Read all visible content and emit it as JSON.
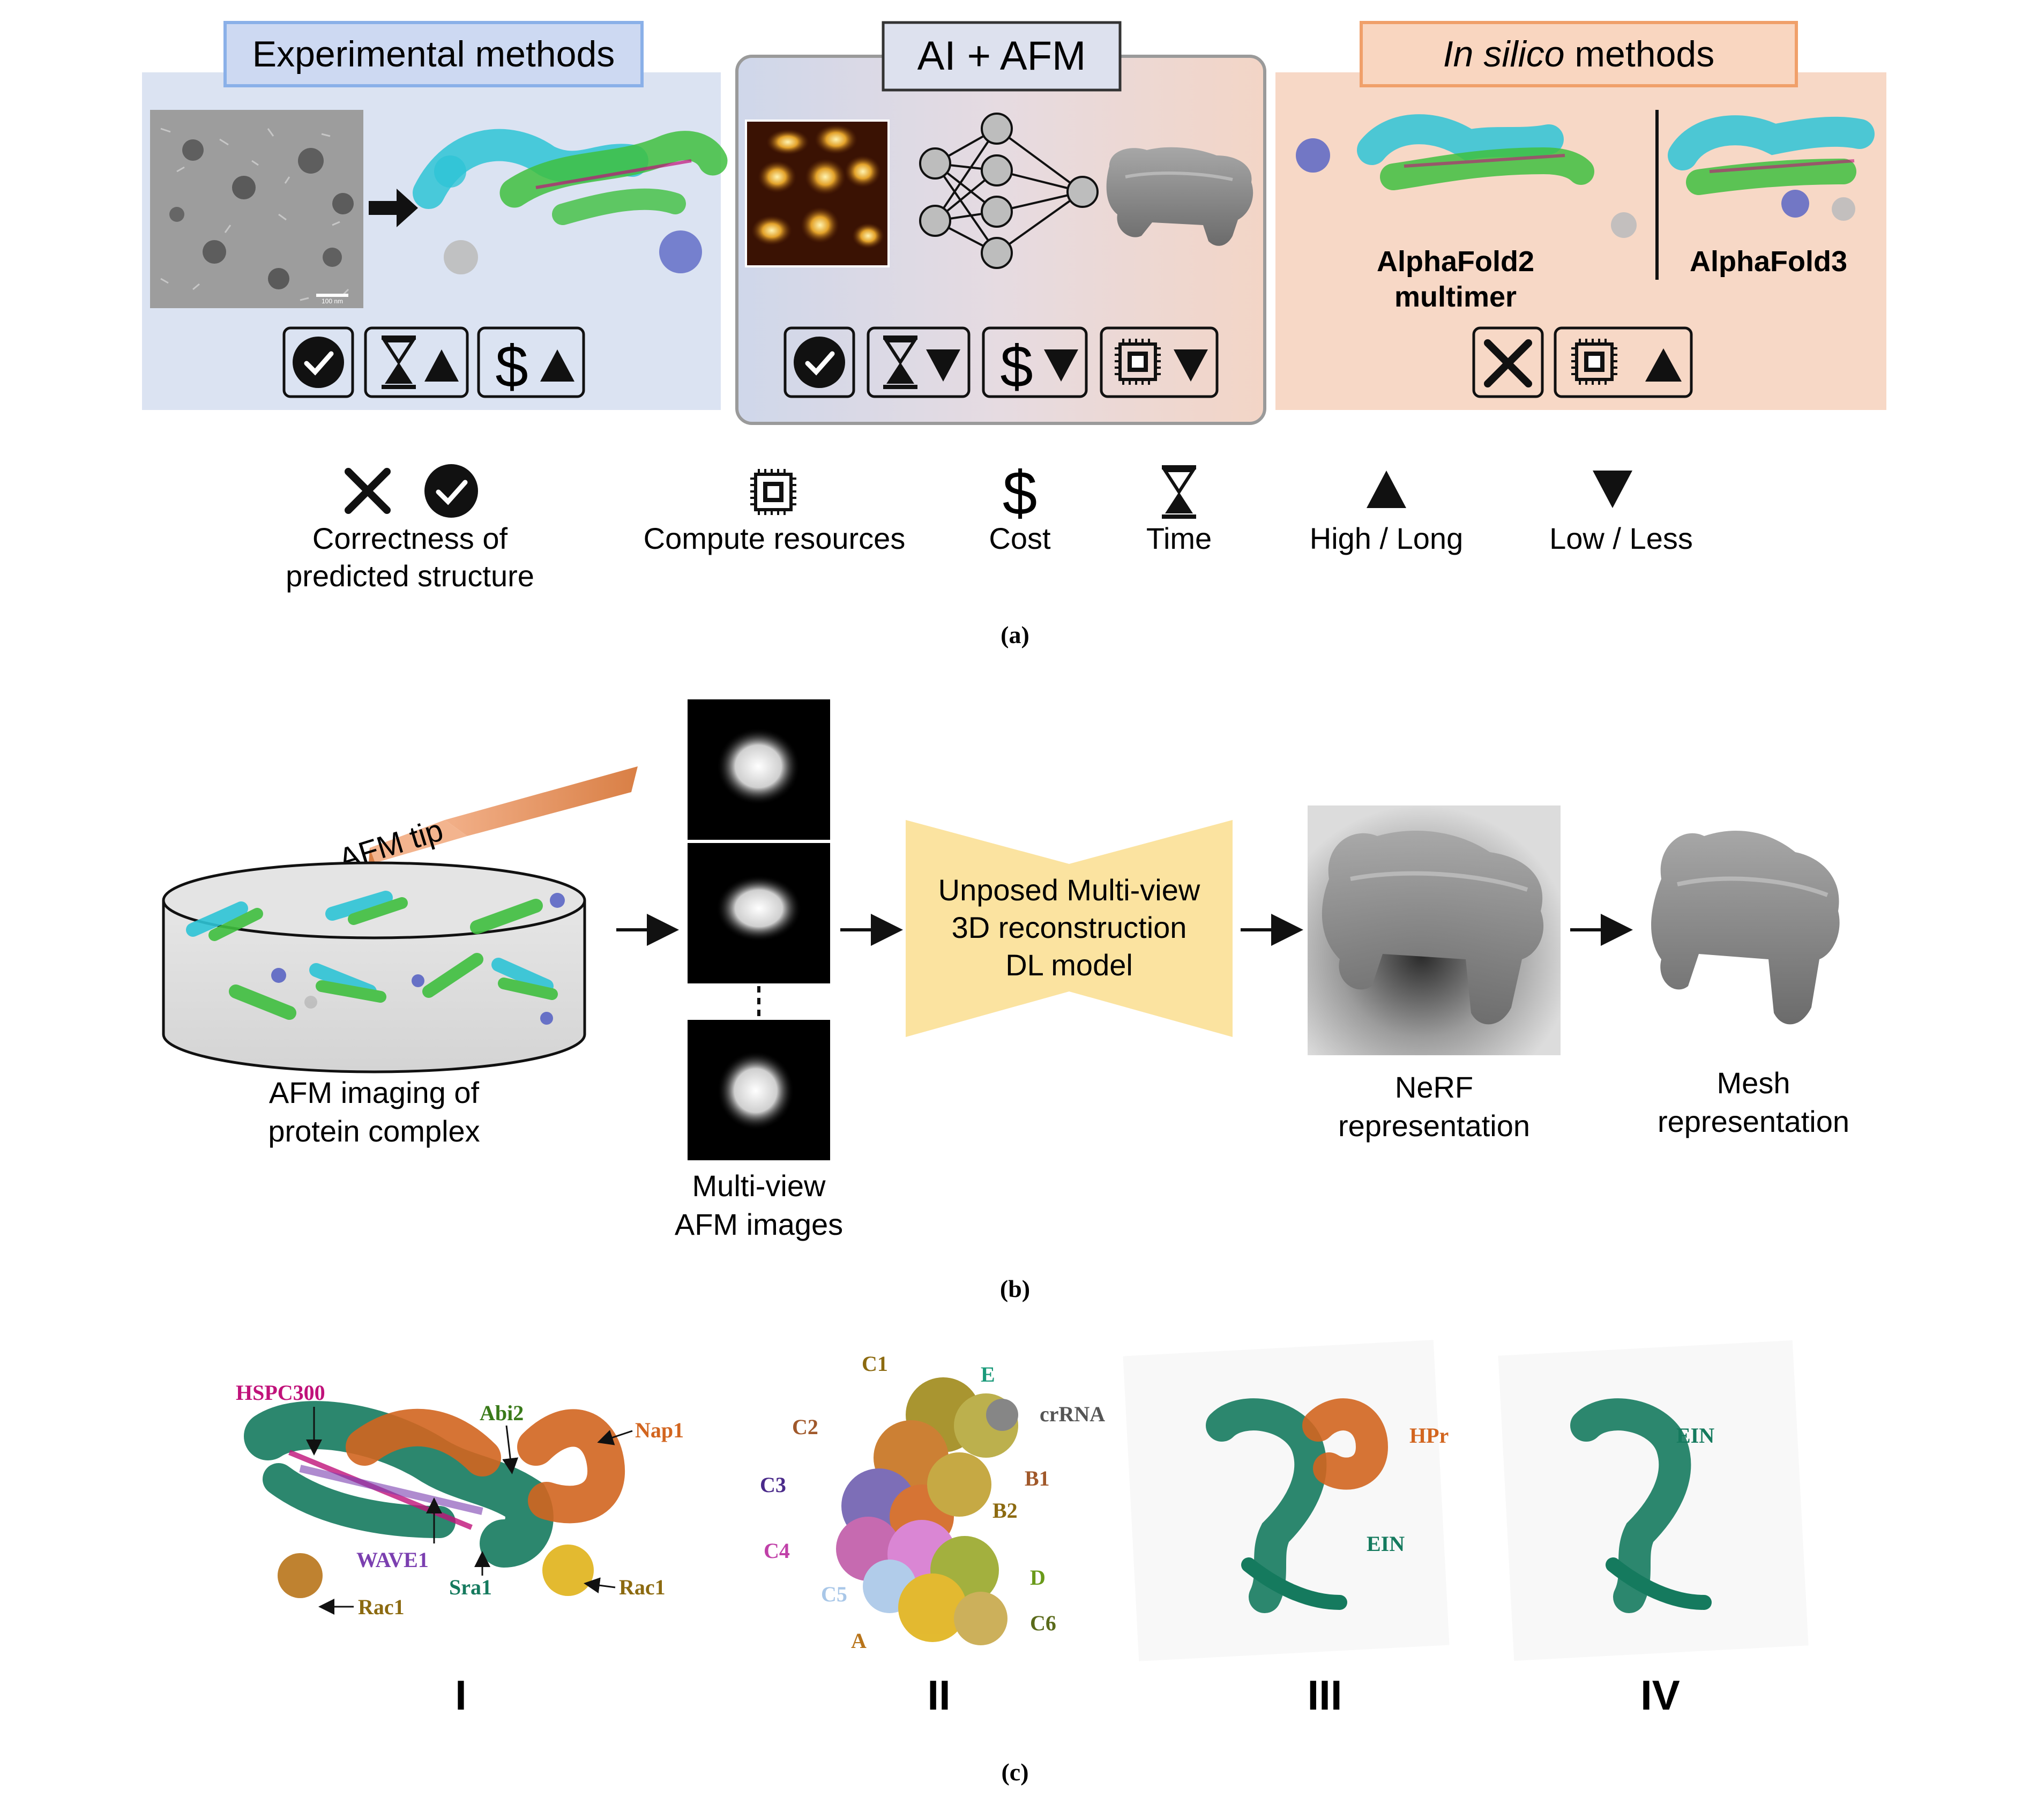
{
  "panel_a": {
    "experimental": {
      "title": "Experimental methods"
    },
    "ai_afm": {
      "title": "AI + AFM"
    },
    "in_silico": {
      "title_italic": "In silico",
      "title_rest": " methods",
      "af2_line1": "AlphaFold2",
      "af2_line2": "multimer",
      "af3": "AlphaFold3"
    },
    "micrograph_scale": "100 nm",
    "legend": {
      "correctness_1": "Correctness of",
      "correctness_2": "predicted structure",
      "compute": "Compute resources",
      "cost": "Cost",
      "time": "Time",
      "high": "High / Long",
      "low": "Low / Less"
    },
    "caption": "(a)"
  },
  "panel_b": {
    "afm_tip": "AFM tip",
    "afm_imaging_1": "AFM imaging of",
    "afm_imaging_2": "protein complex",
    "multiview_1": "Multi-view",
    "multiview_2": "AFM images",
    "model_1": "Unposed Multi-view",
    "model_2": "3D reconstruction",
    "model_3": "DL model",
    "nerf_1": "NeRF",
    "nerf_2": "representation",
    "mesh_1": "Mesh",
    "mesh_2": "representation",
    "caption": "(b)"
  },
  "panel_c": {
    "s1": {
      "hspc": "HSPC300",
      "abi2": "Abi2",
      "nap1": "Nap1",
      "wave1": "WAVE1",
      "sra1": "Sra1",
      "rac1_a": "Rac1",
      "rac1_b": "Rac1",
      "numeral": "I"
    },
    "s2": {
      "c1": "C1",
      "e": "E",
      "crrna": "crRNA",
      "c2": "C2",
      "b1": "B1",
      "c3": "C3",
      "b2": "B2",
      "c4": "C4",
      "c5": "C5",
      "d": "D",
      "c6": "C6",
      "a": "A",
      "numeral": "II"
    },
    "s3": {
      "hpr": "HPr",
      "ein": "EIN",
      "numeral": "III"
    },
    "s4": {
      "ein": "EIN",
      "numeral": "IV"
    },
    "caption": "(c)"
  },
  "colors": {
    "exp_bg": "#dbe3f2",
    "insilico_bg": "#f7d8c6",
    "protein_cyan": "#2ec4d6",
    "protein_green": "#3fbf3f",
    "protein_blue": "#5b66c4",
    "teal_structure": "#157a5e",
    "orange_structure": "#d2651f",
    "label_magenta": "#c0127a",
    "label_purple": "#7b3fb0",
    "label_gold": "#8c6a10",
    "model_yellow": "#fbe3a0",
    "tip_orange": "#e0894f"
  }
}
